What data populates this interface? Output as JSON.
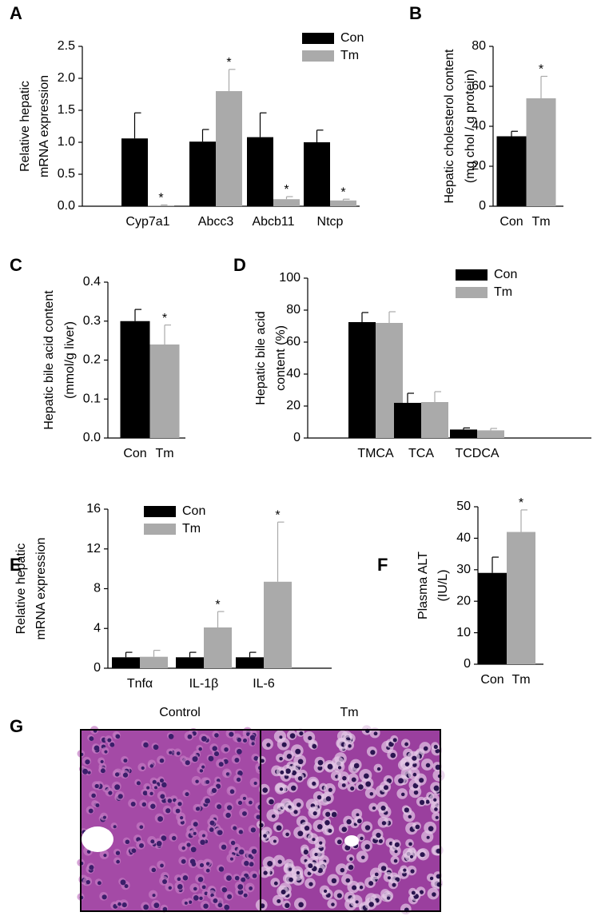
{
  "chart_data": [
    {
      "type": "bar",
      "panel": "A",
      "ylabel": [
        "Relative hepatic",
        "mRNA expression"
      ],
      "categories": [
        "Cyp7a1",
        "Abcc3",
        "Abcb11",
        "Ntcp"
      ],
      "series": [
        {
          "name": "Con",
          "color": "#000000",
          "values": [
            1.06,
            1.01,
            1.08,
            1.0
          ],
          "errors": [
            0.4,
            0.19,
            0.38,
            0.19
          ],
          "significance": [
            null,
            null,
            null,
            null
          ]
        },
        {
          "name": "Tm",
          "color": "#aaaaaa",
          "values": [
            0.01,
            1.8,
            0.11,
            0.09
          ],
          "errors": [
            0.01,
            0.34,
            0.04,
            0.02
          ],
          "significance": [
            "*",
            "*",
            "*",
            "*"
          ]
        }
      ],
      "ylim": [
        0,
        2.5
      ],
      "yticks": [
        {
          "value": 0,
          "label": "0.0"
        },
        0.5,
        {
          "value": 1,
          "label": "1.0"
        },
        1.5,
        {
          "value": 2,
          "label": "2.0"
        },
        2.5
      ],
      "legend": true
    },
    {
      "type": "bar",
      "panel": "B",
      "ylabel": [
        "Hepatic cholesterol content",
        "(mg chol / g protein)"
      ],
      "categories": [
        "Con",
        "Tm"
      ],
      "values": [
        35,
        54
      ],
      "errors": [
        2.5,
        11
      ],
      "colors": [
        "#000000",
        "#aaaaaa"
      ],
      "significance": [
        null,
        "*"
      ],
      "ylim": [
        0,
        80
      ],
      "yticks": [
        0,
        20,
        40,
        60,
        80
      ],
      "legend": false
    },
    {
      "type": "bar",
      "panel": "C",
      "ylabel": [
        "Hepatic bile acid content",
        "(mmol/g liver)"
      ],
      "categories": [
        "Con",
        "Tm"
      ],
      "values": [
        0.3,
        0.24
      ],
      "errors": [
        0.03,
        0.05
      ],
      "colors": [
        "#000000",
        "#aaaaaa"
      ],
      "significance": [
        null,
        "*"
      ],
      "ylim": [
        0,
        0.4
      ],
      "yticks": [
        {
          "value": 0,
          "label": "0.0"
        },
        0.1,
        0.2,
        0.3,
        0.4
      ],
      "legend": false
    },
    {
      "type": "bar",
      "panel": "D",
      "ylabel": [
        "Hepatic bile acid",
        "content (%)"
      ],
      "categories": [
        "TMCA",
        "TCA",
        "TCDCA"
      ],
      "series": [
        {
          "name": "Con",
          "color": "#000000",
          "values": [
            72.5,
            22,
            5.3
          ],
          "errors": [
            6,
            6,
            1
          ],
          "significance": [
            null,
            null,
            null
          ]
        },
        {
          "name": "Tm",
          "color": "#aaaaaa",
          "values": [
            72,
            22.5,
            4.8
          ],
          "errors": [
            7,
            6.5,
            1.2
          ],
          "significance": [
            null,
            null,
            null
          ]
        }
      ],
      "ylim": [
        0,
        100
      ],
      "yticks": [
        0,
        20,
        40,
        60,
        80,
        100
      ],
      "legend": true
    },
    {
      "type": "bar",
      "panel": "E",
      "ylabel": [
        "Relative hepatic",
        "mRNA expression"
      ],
      "categories": [
        "Tnfα",
        "IL-1β",
        "IL-6"
      ],
      "series": [
        {
          "name": "Con",
          "color": "#000000",
          "values": [
            1.1,
            1.1,
            1.1
          ],
          "errors": [
            0.5,
            0.5,
            0.5
          ],
          "significance": [
            null,
            null,
            null
          ]
        },
        {
          "name": "Tm",
          "color": "#aaaaaa",
          "values": [
            1.15,
            4.1,
            8.7
          ],
          "errors": [
            0.65,
            1.6,
            6.0
          ],
          "significance": [
            null,
            "*",
            "*"
          ]
        }
      ],
      "ylim": [
        0,
        16
      ],
      "yticks": [
        0,
        4,
        8,
        12,
        16
      ],
      "legend": true
    },
    {
      "type": "bar",
      "panel": "F",
      "ylabel": [
        "Plasma ALT",
        "(IU/L)"
      ],
      "categories": [
        "Con",
        "Tm"
      ],
      "values": [
        29,
        42
      ],
      "errors": [
        5,
        7
      ],
      "colors": [
        "#000000",
        "#aaaaaa"
      ],
      "significance": [
        null,
        "*"
      ],
      "ylim": [
        0,
        50
      ],
      "yticks": [
        0,
        10,
        20,
        30,
        40,
        50
      ],
      "legend": false
    }
  ],
  "histology": {
    "panel": "G",
    "labels": [
      "Control",
      "Tm"
    ]
  }
}
